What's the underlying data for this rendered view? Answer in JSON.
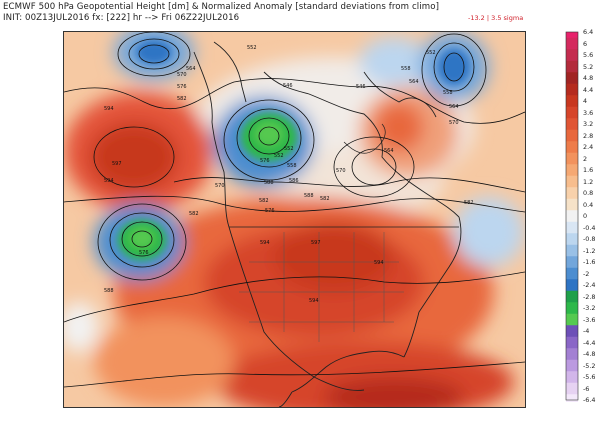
{
  "header": {
    "line1": "ECMWF 500 hPa Geopotential Height [dm] & Normalized Anomaly [standard deviations from climo]",
    "line2": "INIT: 00Z13JUL2016 fx: [222] hr --> Fri 06Z22JUL2016",
    "range_note": "-13.2 | 3.5 sigma"
  },
  "colorbar": {
    "labels": [
      "6.4",
      "6",
      "5.6",
      "5.2",
      "4.8",
      "4.4",
      "4",
      "3.6",
      "3.2",
      "2.8",
      "2.4",
      "2",
      "1.6",
      "1.2",
      "0.8",
      "0.4",
      "0",
      "-0.4",
      "-0.8",
      "-1.2",
      "-1.6",
      "-2",
      "-2.4",
      "-2.8",
      "-3.2",
      "-3.6",
      "-4",
      "-4.4",
      "-4.8",
      "-5.2",
      "-5.6",
      "-6",
      "-6.4"
    ],
    "colors": [
      "#e8226c",
      "#d42a5e",
      "#c42c4f",
      "#b32b3b",
      "#a12423",
      "#b52b1e",
      "#c8371f",
      "#d6452a",
      "#e05534",
      "#e8683d",
      "#ee7c4a",
      "#f2925d",
      "#f5a873",
      "#f7bd8d",
      "#f8d1ab",
      "#f6e2c8",
      "#f2f2f2",
      "#d9e6f4",
      "#bcd6ef",
      "#99c0e6",
      "#72a6db",
      "#4c8dd0",
      "#2e74c4",
      "#1fa04a",
      "#2db84a",
      "#55c950",
      "#6d4fb7",
      "#8a66c7",
      "#a380d3",
      "#bb9ae0",
      "#d2b6ea",
      "#e6d2f2",
      "#f3e8fa"
    ]
  },
  "map": {
    "height_labels": [
      "552",
      "570",
      "576",
      "582",
      "564",
      "546",
      "552",
      "558",
      "564",
      "570",
      "576",
      "582",
      "588",
      "594",
      "594",
      "597",
      "576",
      "588",
      "558",
      "564",
      "546",
      "552",
      "552",
      "558",
      "570",
      "582",
      "588",
      "586",
      "594",
      "597",
      "594",
      "582",
      "594",
      "576",
      "582",
      "570",
      "564"
    ]
  }
}
